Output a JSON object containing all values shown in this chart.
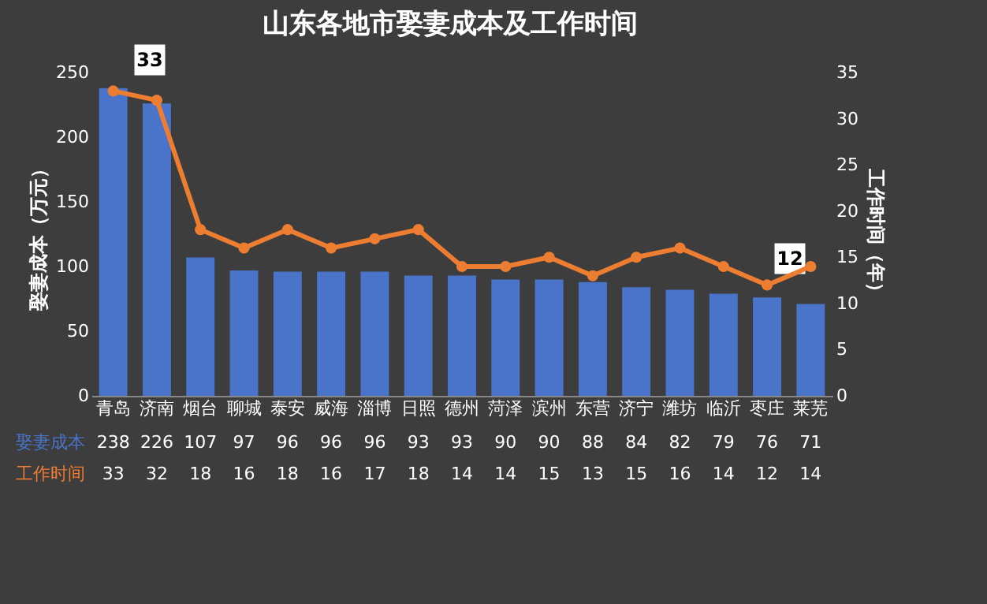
{
  "chart_data": {
    "type": "bar",
    "title": "山东各地市娶妻成本及工作时间",
    "ylabel": "娶妻成本（万元）",
    "y2label": "工作时间（年）",
    "categories": [
      "青岛",
      "济南",
      "烟台",
      "聊城",
      "泰安",
      "威海",
      "淄博",
      "日照",
      "德州",
      "菏泽",
      "滨州",
      "东营",
      "济宁",
      "潍坊",
      "临沂",
      "枣庄",
      "莱芜"
    ],
    "series": [
      {
        "name": "娶妻成本",
        "color": "#4a74c9",
        "values": [
          238,
          226,
          107,
          97,
          96,
          96,
          96,
          93,
          93,
          90,
          90,
          88,
          84,
          82,
          79,
          76,
          71
        ]
      },
      {
        "name": "工作时间",
        "type": "line",
        "axis": "y2",
        "color": "#ed7d31",
        "values": [
          33,
          32,
          18,
          16,
          18,
          16,
          17,
          18,
          14,
          14,
          15,
          13,
          15,
          16,
          14,
          12,
          14
        ]
      }
    ],
    "ylim": [
      0,
      250
    ],
    "yticks": [
      0,
      50,
      100,
      150,
      200,
      250
    ],
    "y2lim": [
      0,
      35
    ],
    "y2ticks": [
      0,
      5,
      10,
      15,
      20,
      25,
      30,
      35
    ],
    "grid": false,
    "marker": "circle",
    "data_labels": true,
    "annotations": [
      "33",
      "12"
    ]
  }
}
